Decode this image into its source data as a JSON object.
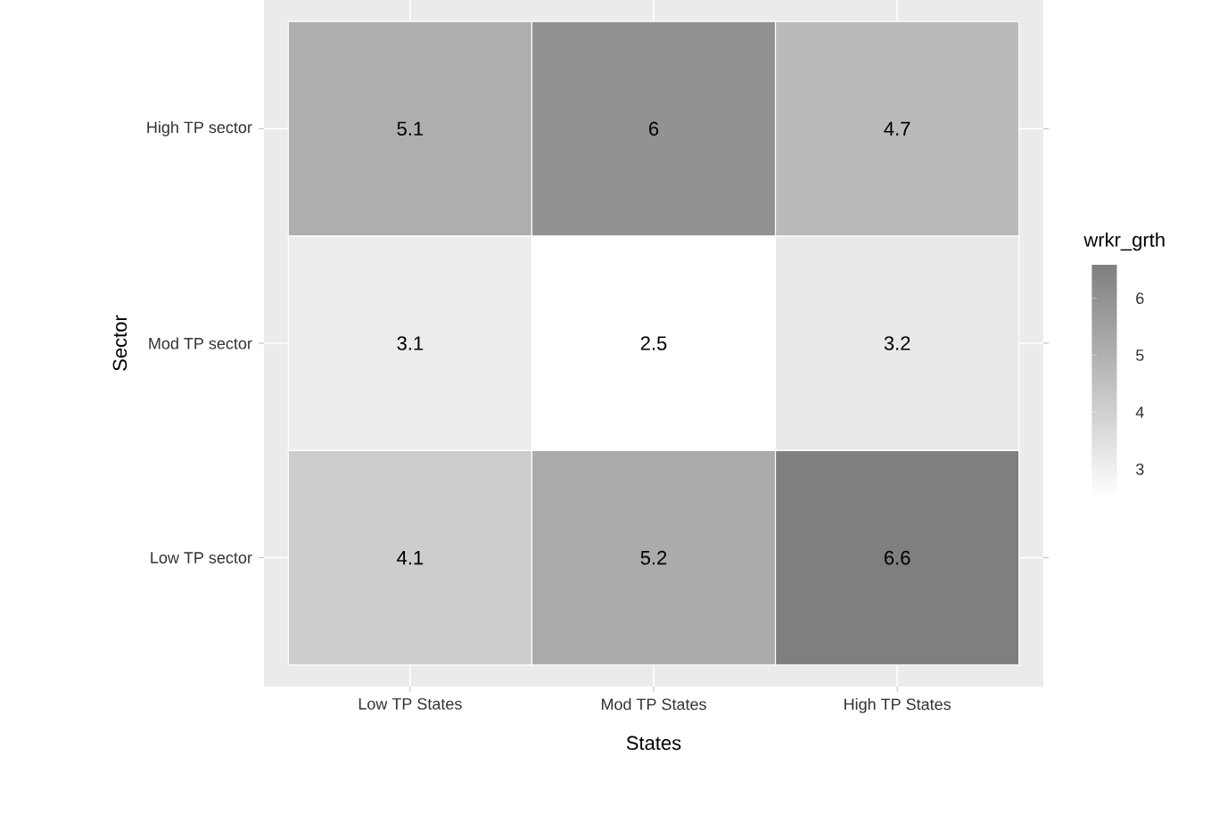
{
  "chart_data": {
    "type": "heatmap",
    "xlabel": "States",
    "ylabel": "Sector",
    "clabel": "wrkr_grth",
    "categories": [
      "Low TP States",
      "Mod TP States",
      "High TP States"
    ],
    "y_categories": [
      "High TP sector",
      "Mod TP sector",
      "Low TP sector"
    ],
    "cells": [
      [
        5.1,
        6,
        4.7
      ],
      [
        3.1,
        2.5,
        3.2
      ],
      [
        4.1,
        5.2,
        6.6
      ]
    ],
    "clim": [
      2.5,
      6.6
    ],
    "cticks": [
      3,
      4,
      5,
      6
    ],
    "data_labels": true,
    "grid": true
  }
}
